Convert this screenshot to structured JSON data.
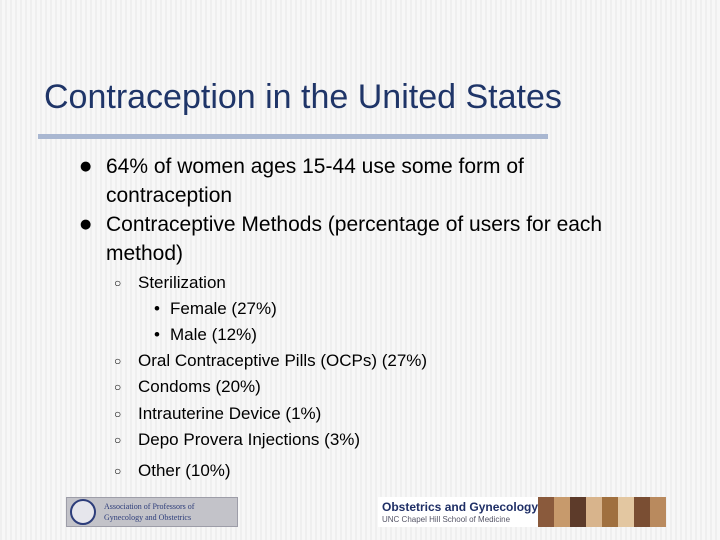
{
  "slide": {
    "title": "Contraception in the United States",
    "bullets": [
      {
        "marker": "l",
        "line1": "64% of women ages 15-44 use some form of",
        "line2": "contraception"
      },
      {
        "marker": "l",
        "line1": "Contraceptive Methods (percentage of users for each",
        "line2": "method)"
      }
    ],
    "methods": {
      "marker": "¢",
      "sterilization": "Sterilization",
      "female": "Female  (27%)",
      "male": "Male  (12%)",
      "ocp": "Oral Contraceptive Pills (OCPs)  (27%)",
      "condoms": "Condoms  (20%)",
      "iud": "Intrauterine Device  (1%)",
      "depo": "Depo Provera Injections  (3%)",
      "other": "Other  (10%)",
      "sub_marker": "•"
    }
  },
  "footer": {
    "left_logo": {
      "line1": "Association of Professors of",
      "line2": "Gynecology and Obstetrics"
    },
    "right_logo": {
      "title": "Obstetrics and Gynecology",
      "subtitle": "UNC Chapel Hill School of Medicine"
    }
  },
  "colors": {
    "title": "#1f3568",
    "rule": "#a9b7d1",
    "photo_strip": [
      "#8a5a3c",
      "#c79a6c",
      "#5d3b2a",
      "#d8b48c",
      "#a0703f",
      "#e3c7a1",
      "#7a4e33",
      "#b98a5e"
    ]
  }
}
